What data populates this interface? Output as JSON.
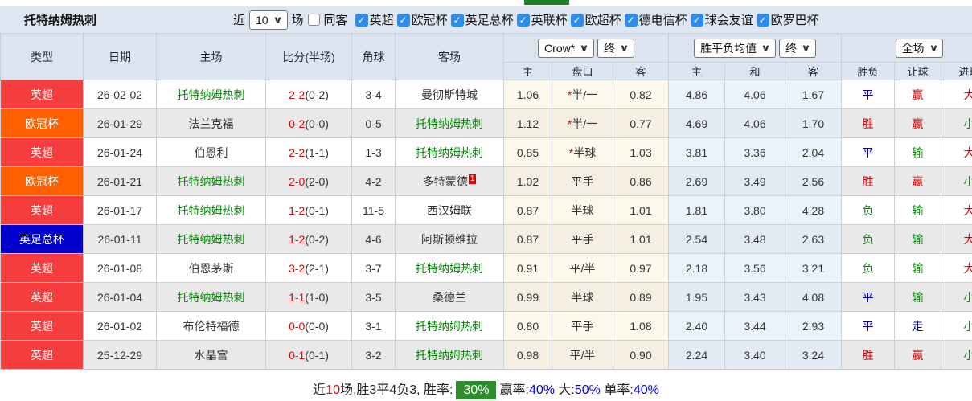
{
  "page": {
    "title": "托特纳姆热刺"
  },
  "toolbar": {
    "near_label": "近",
    "matches_select_value": "10",
    "matches_label": "场",
    "same_venue_label": "同客",
    "same_venue_checked": false,
    "league_filters": [
      {
        "label": "英超",
        "checked": true
      },
      {
        "label": "欧冠杯",
        "checked": true
      },
      {
        "label": "英足总杯",
        "checked": true
      },
      {
        "label": "英联杯",
        "checked": true
      },
      {
        "label": "欧超杯",
        "checked": true
      },
      {
        "label": "德电信杯",
        "checked": true
      },
      {
        "label": "球会友谊",
        "checked": true
      },
      {
        "label": "欧罗巴杯",
        "checked": true
      }
    ]
  },
  "table": {
    "main_headers": [
      "类型",
      "日期",
      "主场",
      "比分(半场)",
      "角球",
      "客场"
    ],
    "sub_headers": [
      "主",
      "盘口",
      "客",
      "主",
      "和",
      "客",
      "胜负",
      "让球",
      "进球"
    ],
    "dropdowns": {
      "odds_source": "Crow*",
      "odds_time1": "终",
      "avg_source": "胜平负均值",
      "odds_time2": "终",
      "scope": "全场"
    },
    "rows": [
      {
        "type": "英超",
        "type_color": "#f53d3d",
        "date": "26-02-02",
        "home": "托特纳姆热刺",
        "home_green": true,
        "score": "2-2",
        "half": "(0-2)",
        "corners": "3-4",
        "away": "曼彻斯特城",
        "away_green": false,
        "away_sup": "",
        "odds_home": "1.06",
        "hcp_star": true,
        "hcp": "半/一",
        "odds_away": "0.82",
        "avg": [
          "4.86",
          "4.06",
          "1.67"
        ],
        "results": [
          {
            "t": "平",
            "c": "blue"
          },
          {
            "t": "赢",
            "c": "red"
          },
          {
            "t": "大",
            "c": "red"
          }
        ]
      },
      {
        "type": "欧冠杯",
        "type_color": "#ff6000",
        "date": "26-01-29",
        "home": "法兰克福",
        "home_green": false,
        "score": "0-2",
        "half": "(0-0)",
        "corners": "0-5",
        "away": "托特纳姆热刺",
        "away_green": true,
        "away_sup": "",
        "odds_home": "1.12",
        "hcp_star": true,
        "hcp": "半/一",
        "odds_away": "0.77",
        "avg": [
          "4.69",
          "4.06",
          "1.70"
        ],
        "results": [
          {
            "t": "胜",
            "c": "red"
          },
          {
            "t": "赢",
            "c": "red"
          },
          {
            "t": "小",
            "c": "green"
          }
        ]
      },
      {
        "type": "英超",
        "type_color": "#f53d3d",
        "date": "26-01-24",
        "home": "伯恩利",
        "home_green": false,
        "score": "2-2",
        "half": "(1-1)",
        "corners": "1-3",
        "away": "托特纳姆热刺",
        "away_green": true,
        "away_sup": "",
        "odds_home": "0.85",
        "hcp_star": true,
        "hcp": "半球",
        "odds_away": "1.03",
        "avg": [
          "3.81",
          "3.36",
          "2.04"
        ],
        "results": [
          {
            "t": "平",
            "c": "blue"
          },
          {
            "t": "输",
            "c": "green"
          },
          {
            "t": "大",
            "c": "red"
          }
        ]
      },
      {
        "type": "欧冠杯",
        "type_color": "#ff6000",
        "date": "26-01-21",
        "home": "托特纳姆热刺",
        "home_green": true,
        "score": "2-0",
        "half": "(2-0)",
        "corners": "4-2",
        "away": "多特蒙德",
        "away_green": false,
        "away_sup": "1",
        "odds_home": "1.02",
        "hcp_star": false,
        "hcp": "平手",
        "odds_away": "0.86",
        "avg": [
          "2.69",
          "3.49",
          "2.56"
        ],
        "results": [
          {
            "t": "胜",
            "c": "red"
          },
          {
            "t": "赢",
            "c": "red"
          },
          {
            "t": "小",
            "c": "green"
          }
        ]
      },
      {
        "type": "英超",
        "type_color": "#f53d3d",
        "date": "26-01-17",
        "home": "托特纳姆热刺",
        "home_green": true,
        "score": "1-2",
        "half": "(0-1)",
        "corners": "11-5",
        "away": "西汉姆联",
        "away_green": false,
        "away_sup": "",
        "odds_home": "0.87",
        "hcp_star": false,
        "hcp": "半球",
        "odds_away": "1.01",
        "avg": [
          "1.81",
          "3.80",
          "4.28"
        ],
        "results": [
          {
            "t": "负",
            "c": "green"
          },
          {
            "t": "输",
            "c": "green"
          },
          {
            "t": "大",
            "c": "red"
          }
        ]
      },
      {
        "type": "英足总杯",
        "type_color": "#0000cd",
        "date": "26-01-11",
        "home": "托特纳姆热刺",
        "home_green": true,
        "score": "1-2",
        "half": "(0-2)",
        "corners": "4-6",
        "away": "阿斯顿维拉",
        "away_green": false,
        "away_sup": "",
        "odds_home": "0.87",
        "hcp_star": false,
        "hcp": "平手",
        "odds_away": "1.01",
        "avg": [
          "2.54",
          "3.48",
          "2.63"
        ],
        "results": [
          {
            "t": "负",
            "c": "green"
          },
          {
            "t": "输",
            "c": "green"
          },
          {
            "t": "大",
            "c": "red"
          }
        ]
      },
      {
        "type": "英超",
        "type_color": "#f53d3d",
        "date": "26-01-08",
        "home": "伯恩茅斯",
        "home_green": false,
        "score": "3-2",
        "half": "(2-1)",
        "corners": "3-7",
        "away": "托特纳姆热刺",
        "away_green": true,
        "away_sup": "",
        "odds_home": "0.91",
        "hcp_star": false,
        "hcp": "平/半",
        "odds_away": "0.97",
        "avg": [
          "2.18",
          "3.56",
          "3.21"
        ],
        "results": [
          {
            "t": "负",
            "c": "green"
          },
          {
            "t": "输",
            "c": "green"
          },
          {
            "t": "大",
            "c": "red"
          }
        ]
      },
      {
        "type": "英超",
        "type_color": "#f53d3d",
        "date": "26-01-04",
        "home": "托特纳姆热刺",
        "home_green": true,
        "score": "1-1",
        "half": "(1-0)",
        "corners": "3-5",
        "away": "桑德兰",
        "away_green": false,
        "away_sup": "",
        "odds_home": "0.99",
        "hcp_star": false,
        "hcp": "半球",
        "odds_away": "0.89",
        "avg": [
          "1.95",
          "3.43",
          "4.08"
        ],
        "results": [
          {
            "t": "平",
            "c": "blue"
          },
          {
            "t": "输",
            "c": "green"
          },
          {
            "t": "小",
            "c": "green"
          }
        ]
      },
      {
        "type": "英超",
        "type_color": "#f53d3d",
        "date": "26-01-02",
        "home": "布伦特福德",
        "home_green": false,
        "score": "0-0",
        "half": "(0-0)",
        "corners": "3-1",
        "away": "托特纳姆热刺",
        "away_green": true,
        "away_sup": "",
        "odds_home": "0.80",
        "hcp_star": false,
        "hcp": "平手",
        "odds_away": "1.08",
        "avg": [
          "2.40",
          "3.44",
          "2.93"
        ],
        "results": [
          {
            "t": "平",
            "c": "blue"
          },
          {
            "t": "走",
            "c": "blue"
          },
          {
            "t": "小",
            "c": "green"
          }
        ]
      },
      {
        "type": "英超",
        "type_color": "#f53d3d",
        "date": "25-12-29",
        "home": "水晶宫",
        "home_green": false,
        "score": "0-1",
        "half": "(0-1)",
        "corners": "3-2",
        "away": "托特纳姆热刺",
        "away_green": true,
        "away_sup": "",
        "odds_home": "0.98",
        "hcp_star": false,
        "hcp": "平/半",
        "odds_away": "0.90",
        "avg": [
          "2.24",
          "3.40",
          "3.24"
        ],
        "results": [
          {
            "t": "胜",
            "c": "red"
          },
          {
            "t": "赢",
            "c": "red"
          },
          {
            "t": "小",
            "c": "green"
          }
        ]
      }
    ]
  },
  "footer": {
    "parts": [
      {
        "t": "近",
        "c": "dark"
      },
      {
        "t": "10",
        "c": "red"
      },
      {
        "t": "场,胜3平4负3, 胜率:",
        "c": "dark"
      },
      {
        "t": "30%",
        "c": "badge"
      },
      {
        "t": "赢率:",
        "c": "dark"
      },
      {
        "t": "40%",
        "c": "blue"
      },
      {
        "t": " 大:",
        "c": "dark"
      },
      {
        "t": "50%",
        "c": "blue"
      },
      {
        "t": " 单率:",
        "c": "dark"
      },
      {
        "t": "40%",
        "c": "blue"
      }
    ]
  },
  "colors": {
    "accent_red": "#e60000",
    "accent_green": "#088a08",
    "accent_blue": "#0000cc",
    "badge_epl": "#f53d3d",
    "badge_ucl": "#ff6000",
    "badge_facup": "#0000cd",
    "footer_badge_green": "#2e8b2e",
    "checkbox_blue": "#2d8cf0",
    "header_bg": "#dce4f0",
    "active_tab_green": "#1d801d"
  }
}
